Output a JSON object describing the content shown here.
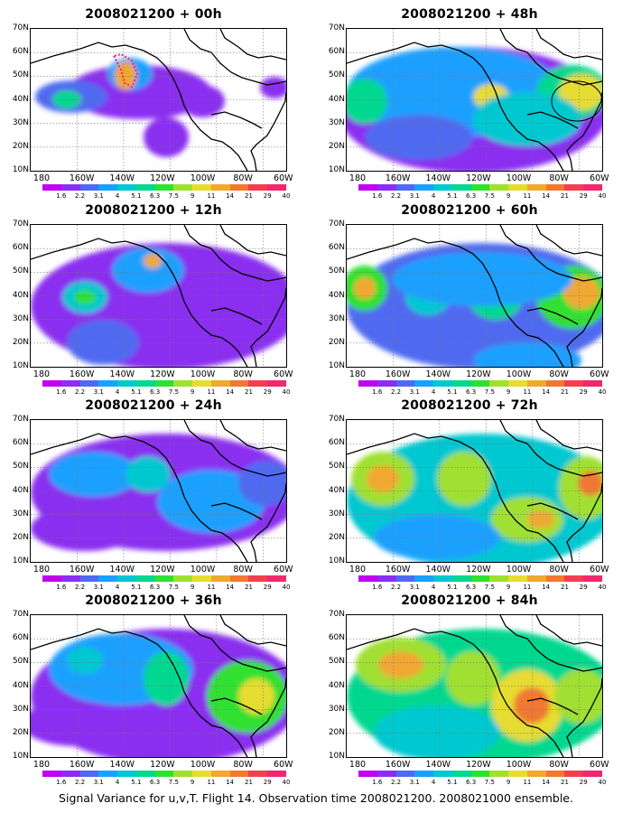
{
  "footer": "Signal Variance for u,v,T. Flight 14. Observation time 2008021200. 2008021000 ensemble.",
  "y_axis_labels": [
    "70N",
    "60N",
    "50N",
    "40N",
    "30N",
    "20N",
    "10N"
  ],
  "x_axis_labels": [
    "180",
    "160W",
    "140W",
    "120W",
    "100W",
    "80W",
    "60W"
  ],
  "colorbar": {
    "labels": [
      "1.6",
      "2.2",
      "3.1",
      "4",
      "5.1",
      "6.3",
      "7.5",
      "9",
      "11",
      "14",
      "21",
      "29",
      "40"
    ],
    "colors": [
      "#c000f0",
      "#8a2ff0",
      "#4f6af0",
      "#1aa0ff",
      "#00c8d0",
      "#00d890",
      "#30e030",
      "#a0e030",
      "#e6dc32",
      "#f0a830",
      "#f07830",
      "#f04050",
      "#f0286e"
    ]
  },
  "panels": [
    {
      "title": "2008021200 + 00h"
    },
    {
      "title": "2008021200 + 48h"
    },
    {
      "title": "2008021200 + 12h"
    },
    {
      "title": "2008021200 + 60h"
    },
    {
      "title": "2008021200 + 24h"
    },
    {
      "title": "2008021200 + 72h"
    },
    {
      "title": "2008021200 + 36h"
    },
    {
      "title": "2008021200 + 84h"
    }
  ]
}
